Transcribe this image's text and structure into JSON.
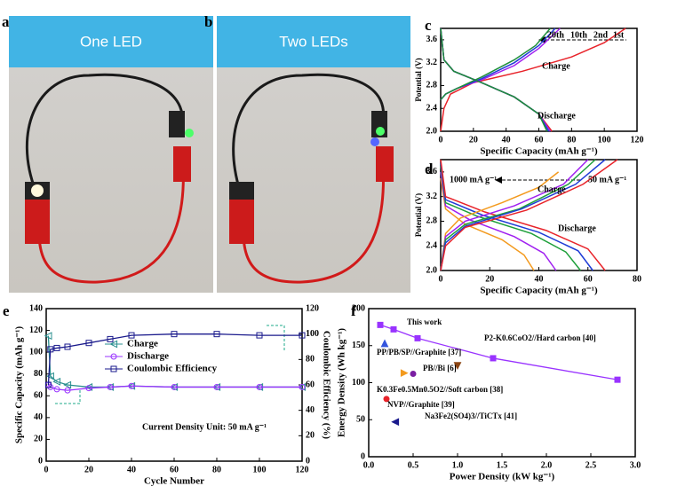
{
  "panels": {
    "a": {
      "label": "a",
      "caption": "One LED"
    },
    "b": {
      "label": "b",
      "caption": "Two LEDs"
    }
  },
  "chart_data": [
    {
      "label": "c",
      "type": "line",
      "xlabel": "Specific Capacity (mAh g⁻¹)",
      "ylabel": "Potential (V)",
      "xlim": [
        0,
        120
      ],
      "xticks": [
        0,
        20,
        40,
        60,
        80,
        100,
        120
      ],
      "ylim": [
        2,
        3.8
      ],
      "yticks": [
        {
          "value": 2,
          "label": "2.0"
        },
        2.4,
        2.8,
        3.2,
        3.6
      ],
      "series": [
        {
          "color": "#e8232a",
          "x": [
            0,
            2,
            6,
            20,
            50,
            80,
            100,
            113
          ],
          "values": [
            2.0,
            2.4,
            2.65,
            2.85,
            3.05,
            3.3,
            3.55,
            3.8
          ]
        },
        {
          "color": "#a020f0",
          "x": [
            0,
            3,
            10,
            25,
            45,
            60,
            73
          ],
          "values": [
            2.55,
            2.65,
            2.75,
            2.9,
            3.15,
            3.45,
            3.8
          ]
        },
        {
          "color": "#1f3cd6",
          "x": [
            0,
            3,
            10,
            25,
            45,
            60,
            70
          ],
          "values": [
            2.55,
            2.65,
            2.75,
            2.92,
            3.2,
            3.5,
            3.8
          ]
        },
        {
          "color": "#1e8f3a",
          "x": [
            0,
            3,
            10,
            25,
            45,
            58,
            67
          ],
          "values": [
            2.55,
            2.65,
            2.75,
            2.95,
            3.25,
            3.5,
            3.8
          ]
        },
        {
          "color": "#e8232a",
          "x": [
            0,
            2,
            8,
            25,
            45,
            60,
            68
          ],
          "values": [
            3.8,
            3.25,
            3.05,
            2.85,
            2.6,
            2.3,
            2.0
          ]
        },
        {
          "color": "#a020f0",
          "x": [
            0,
            2,
            8,
            25,
            45,
            60,
            67
          ],
          "values": [
            3.8,
            3.25,
            3.05,
            2.85,
            2.6,
            2.3,
            2.0
          ]
        },
        {
          "color": "#1f3cd6",
          "x": [
            0,
            2,
            8,
            25,
            45,
            60,
            66
          ],
          "values": [
            3.8,
            3.25,
            3.05,
            2.85,
            2.6,
            2.3,
            2.0
          ]
        },
        {
          "color": "#1e8f3a",
          "x": [
            0,
            2,
            8,
            25,
            45,
            60,
            65
          ],
          "values": [
            3.8,
            3.25,
            3.05,
            2.85,
            2.6,
            2.3,
            2.0
          ]
        }
      ],
      "annotations": [
        {
          "text": "Charge",
          "color": "#000"
        },
        {
          "text": "Discharge",
          "color": "#000"
        },
        {
          "text": "20th",
          "color": "#1e8f3a"
        },
        {
          "text": "10th",
          "color": "#1f3cd6"
        },
        {
          "text": "2nd",
          "color": "#a020f0"
        },
        {
          "text": "1st",
          "color": "#e8232a"
        }
      ]
    },
    {
      "label": "d",
      "type": "line",
      "xlabel": "Specific Capacity (mAh g⁻¹)",
      "ylabel": "Potential (V)",
      "xlim": [
        0,
        80
      ],
      "xticks": [
        0,
        20,
        40,
        60,
        80
      ],
      "ylim": [
        2,
        3.8
      ],
      "yticks": [
        {
          "value": 2,
          "label": "2.0"
        },
        2.4,
        2.8,
        3.2,
        3.6
      ],
      "series": [
        {
          "color": "#f39a1e",
          "x": [
            0,
            2,
            10,
            25,
            34,
            38
          ],
          "values": [
            3.5,
            3.0,
            2.75,
            2.5,
            2.25,
            2.0
          ]
        },
        {
          "color": "#a020f0",
          "x": [
            0,
            2,
            12,
            30,
            42,
            47
          ],
          "values": [
            3.6,
            3.05,
            2.82,
            2.55,
            2.28,
            2.0
          ]
        },
        {
          "color": "#1e9f3a",
          "x": [
            0,
            2,
            15,
            37,
            51,
            57
          ],
          "values": [
            3.7,
            3.1,
            2.88,
            2.6,
            2.3,
            2.0
          ]
        },
        {
          "color": "#1f3cd6",
          "x": [
            0,
            2,
            17,
            40,
            56,
            62
          ],
          "values": [
            3.75,
            3.15,
            2.9,
            2.62,
            2.32,
            2.0
          ]
        },
        {
          "color": "#e8232a",
          "x": [
            0,
            2,
            18,
            43,
            60,
            67
          ],
          "values": [
            3.8,
            3.2,
            2.95,
            2.65,
            2.35,
            2.0
          ]
        },
        {
          "color": "#f39a1e",
          "x": [
            0,
            2,
            8,
            25,
            40,
            48
          ],
          "values": [
            2.0,
            2.6,
            2.85,
            3.1,
            3.35,
            3.6
          ]
        },
        {
          "color": "#a020f0",
          "x": [
            0,
            2,
            10,
            30,
            50,
            60
          ],
          "values": [
            2.0,
            2.55,
            2.8,
            3.05,
            3.4,
            3.8
          ]
        },
        {
          "color": "#1e9f3a",
          "x": [
            0,
            2,
            10,
            32,
            52,
            63
          ],
          "values": [
            2.0,
            2.5,
            2.75,
            3.0,
            3.4,
            3.8
          ]
        },
        {
          "color": "#1f3cd6",
          "x": [
            0,
            2,
            10,
            33,
            55,
            67
          ],
          "values": [
            2.0,
            2.45,
            2.72,
            3.0,
            3.4,
            3.8
          ]
        },
        {
          "color": "#e8232a",
          "x": [
            0,
            2,
            10,
            35,
            58,
            72
          ],
          "values": [
            2.0,
            2.4,
            2.7,
            2.98,
            3.4,
            3.8
          ]
        }
      ],
      "annotations": [
        {
          "text": "1000 mA g⁻¹",
          "color": "#f39a1e"
        },
        {
          "text": "50 mA g⁻¹",
          "color": "#e8232a"
        },
        {
          "text": "Charge",
          "color": "#000"
        },
        {
          "text": "Discharge",
          "color": "#000"
        }
      ]
    },
    {
      "label": "e",
      "type": "line",
      "xlabel": "Cycle Number",
      "ylabel": "Specific Capacity (mAh g⁻¹)",
      "y2label": "Coulombic Efficiency (%)",
      "xlim": [
        0,
        120
      ],
      "xticks": [
        0,
        20,
        40,
        60,
        80,
        100,
        120
      ],
      "ylim": [
        0,
        140
      ],
      "yticks": [
        0,
        20,
        40,
        60,
        80,
        100,
        120,
        140
      ],
      "y2lim": [
        0,
        120
      ],
      "y2ticks": [
        0,
        20,
        40,
        60,
        80,
        100,
        120
      ],
      "x": [
        1,
        2,
        5,
        10,
        20,
        30,
        40,
        60,
        80,
        100,
        120
      ],
      "series": [
        {
          "name": "Charge",
          "color": "#2a8f8f",
          "marker": "triangle-left",
          "values": [
            115,
            78,
            73,
            70,
            68,
            68,
            69,
            68,
            68,
            68,
            68
          ]
        },
        {
          "name": "Discharge",
          "color": "#9933ff",
          "marker": "circle",
          "values": [
            70,
            68,
            66,
            65,
            67,
            68,
            69,
            68,
            68,
            68,
            68
          ]
        },
        {
          "name": "Coulombic Efficiency",
          "color": "#1a1a8c",
          "marker": "square",
          "axis": "y2",
          "values": [
            60,
            88,
            89,
            90,
            93,
            96,
            99,
            100,
            100,
            99,
            99
          ]
        }
      ],
      "annotations": [
        {
          "text": "Current Density Unit: 50 mA g⁻¹",
          "color": "#000"
        }
      ]
    },
    {
      "label": "f",
      "type": "scatter",
      "xlabel": "Power Density (kW kg⁻¹)",
      "ylabel": "Energy Density (Wh kg⁻¹)",
      "xlim": [
        0,
        3
      ],
      "xticks": [
        {
          "value": 0,
          "label": "0.0"
        },
        0.5,
        {
          "value": 1,
          "label": "1.0"
        },
        1.5,
        {
          "value": 2,
          "label": "2.0"
        },
        2.5,
        {
          "value": 3,
          "label": "3.0"
        }
      ],
      "ylim": [
        0,
        200
      ],
      "yticks": [
        0,
        50,
        100,
        150,
        200
      ],
      "series": [
        {
          "name": "This work",
          "color": "#9933ff",
          "marker": "square",
          "line": true,
          "x": [
            0.13,
            0.28,
            0.55,
            1.4,
            2.8
          ],
          "values": [
            178,
            172,
            160,
            133,
            104
          ]
        },
        {
          "name": "PP/PB/SP//Graphite [37]",
          "color": "#3355dd",
          "marker": "triangle-up",
          "x": [
            0.18
          ],
          "values": [
            153
          ]
        },
        {
          "name": "P2-K0.6CoO2//Hard carbon [40]",
          "color": "#8b4513",
          "marker": "triangle-down",
          "x": [
            1.0
          ],
          "values": [
            123
          ]
        },
        {
          "name": "PB//Bi [6]",
          "color": "#7a1fa2",
          "marker": "circle",
          "x": [
            0.5
          ],
          "values": [
            112
          ]
        },
        {
          "name": "K0.3Fe0.5Mn0.5O2//Soft carbon [38]",
          "color": "#f39a1e",
          "marker": "triangle-right",
          "x": [
            0.4
          ],
          "values": [
            113
          ]
        },
        {
          "name": "NVP//Graphite [39]",
          "color": "#e8232a",
          "marker": "circle",
          "x": [
            0.2
          ],
          "values": [
            78
          ]
        },
        {
          "name": "Na3Fe2(SO4)3//TiCTx [41]",
          "color": "#1a1a8c",
          "marker": "triangle-left",
          "x": [
            0.3
          ],
          "values": [
            47
          ]
        }
      ]
    }
  ]
}
